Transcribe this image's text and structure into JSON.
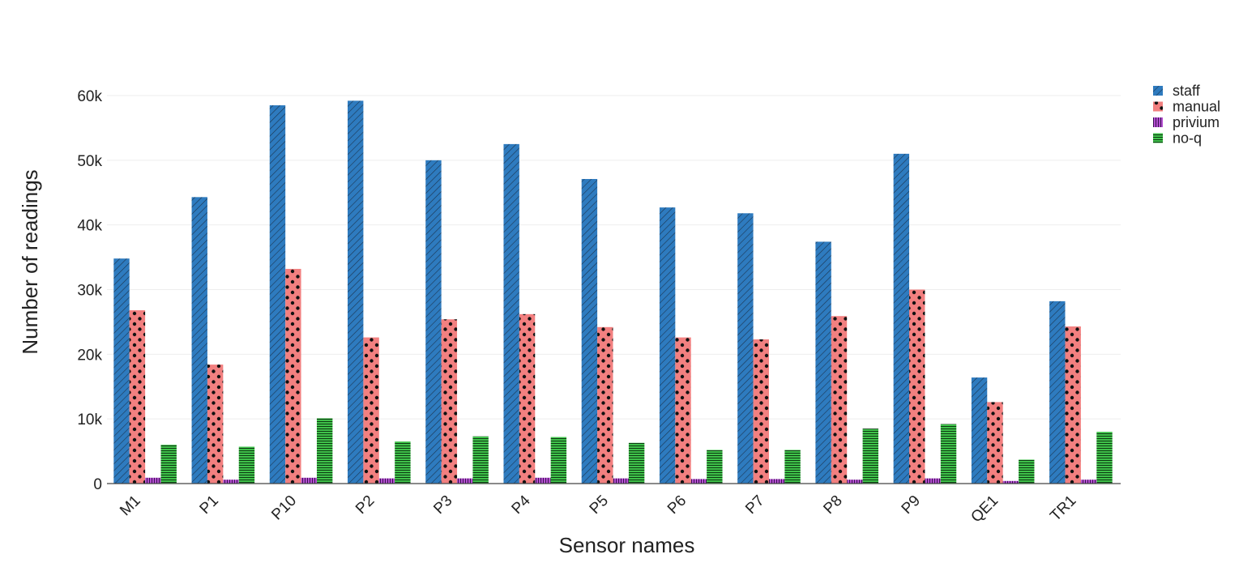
{
  "chart_data": {
    "type": "bar",
    "title": "",
    "xlabel": "Sensor names",
    "ylabel": "Number of readings",
    "ylim": [
      0,
      60000
    ],
    "yticks": [
      0,
      10000,
      20000,
      30000,
      40000,
      50000,
      60000
    ],
    "ytick_labels": [
      "0",
      "10k",
      "20k",
      "30k",
      "40k",
      "50k",
      "60k"
    ],
    "grid": true,
    "legend_position": "top-right",
    "categories": [
      "M1",
      "P1",
      "P10",
      "P2",
      "P3",
      "P4",
      "P5",
      "P6",
      "P7",
      "P8",
      "P9",
      "QE1",
      "TR1"
    ],
    "series": [
      {
        "name": "staff",
        "color": "#2e7bbf",
        "pattern": "diagonal-hatch",
        "values": [
          34800,
          44300,
          58500,
          59200,
          50000,
          52500,
          47100,
          42700,
          41800,
          37400,
          51000,
          16400,
          28200
        ]
      },
      {
        "name": "manual",
        "color": "#f28080",
        "pattern": "dots",
        "values": [
          26800,
          18400,
          33200,
          22600,
          25400,
          26200,
          24200,
          22600,
          22300,
          25900,
          30000,
          12600,
          24300
        ]
      },
      {
        "name": "privium",
        "color": "#b44fd1",
        "pattern": "vertical-lines",
        "values": [
          900,
          600,
          900,
          800,
          800,
          900,
          800,
          700,
          700,
          600,
          800,
          400,
          600
        ]
      },
      {
        "name": "no-q",
        "color": "#3fc24a",
        "pattern": "horizontal-lines",
        "values": [
          6000,
          5700,
          10100,
          6500,
          7300,
          7200,
          6300,
          5200,
          5200,
          8500,
          9200,
          3700,
          8000
        ]
      }
    ]
  }
}
